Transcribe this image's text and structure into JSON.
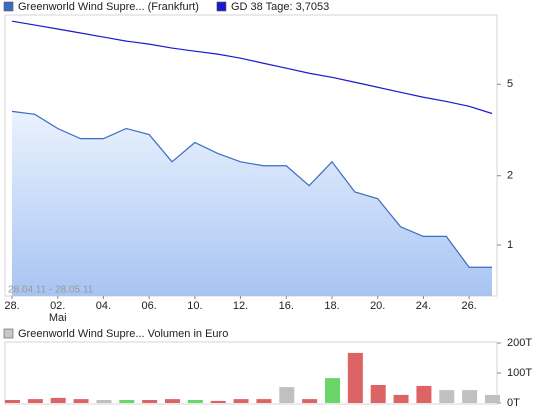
{
  "chart_data": [
    {
      "type": "line",
      "categories": [
        "28.",
        null,
        "02.",
        null,
        "04.",
        null,
        "06.",
        null,
        "10.",
        null,
        "12.",
        null,
        "16.",
        null,
        "18.",
        null,
        "20.",
        null,
        "24.",
        null,
        "26.",
        null
      ],
      "month_label": "Mai",
      "annotation": "28.04.11 - 28.05.11",
      "series": [
        {
          "name": "Greenworld Wind Supre... (Frankfurt)",
          "color": "#3a6cc4",
          "fill": true,
          "values": [
            3.81,
            3.7,
            3.21,
            2.9,
            2.9,
            3.21,
            3.02,
            2.3,
            2.79,
            2.5,
            2.3,
            2.21,
            2.21,
            1.81,
            2.3,
            1.7,
            1.59,
            1.2,
            1.09,
            1.09,
            0.8,
            0.8
          ]
        },
        {
          "name": "GD 38 Tage: 3,7053",
          "color": "#1a1acc",
          "fill": false,
          "values": [
            9.4,
            9.04,
            8.69,
            8.35,
            8.02,
            7.7,
            7.47,
            7.18,
            6.96,
            6.76,
            6.49,
            6.17,
            5.87,
            5.58,
            5.36,
            5.1,
            4.85,
            4.61,
            4.39,
            4.21,
            4.01,
            3.73
          ]
        }
      ],
      "log_scale": true,
      "ylim": [
        0.6,
        10
      ],
      "yticks": [
        1,
        2,
        5
      ]
    },
    {
      "type": "bar",
      "series": [
        {
          "name": "Greenworld Wind Supre... Volumen in Euro",
          "color": "#c8c8c8",
          "values": [
            10000,
            13000,
            17000,
            13000,
            10000,
            10000,
            10000,
            13000,
            10000,
            7000,
            13000,
            13000,
            53000,
            13000,
            83000,
            167000,
            60000,
            27000,
            57000,
            43000,
            43000,
            27000
          ],
          "colors": [
            "#dc6464",
            "#dc6464",
            "#dc6464",
            "#dc6464",
            "#c0c0c0",
            "#6ad66a",
            "#dc6464",
            "#dc6464",
            "#6ad66a",
            "#dc6464",
            "#dc6464",
            "#dc6464",
            "#c0c0c0",
            "#dc6464",
            "#6ad66a",
            "#dc6464",
            "#dc6464",
            "#dc6464",
            "#dc6464",
            "#c0c0c0",
            "#c0c0c0",
            "#c0c0c0"
          ]
        }
      ],
      "ylim": [
        0,
        200000
      ],
      "yticks": [
        {
          "value": 0,
          "label": "0T"
        },
        {
          "value": 100000,
          "label": "100T"
        },
        {
          "value": 200000,
          "label": "200T"
        }
      ]
    }
  ]
}
